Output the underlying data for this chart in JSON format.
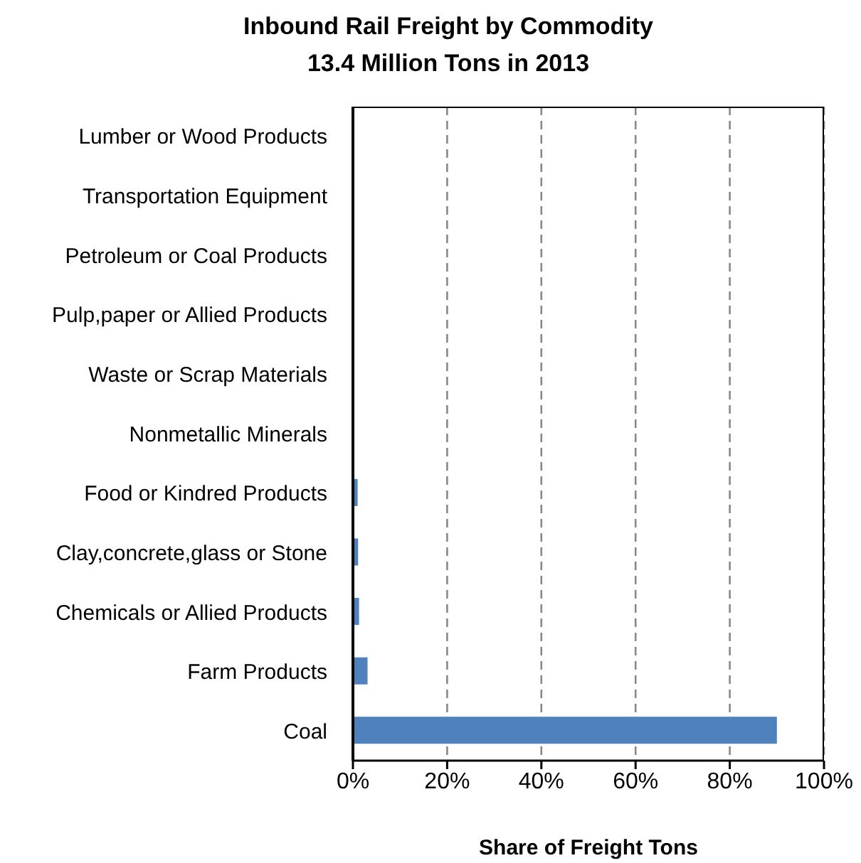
{
  "chart_data": {
    "type": "bar",
    "orientation": "horizontal",
    "title": "Inbound Rail Freight by Commodity",
    "subtitle": "13.4 Million Tons in 2013",
    "xlabel": "Share of Freight Tons",
    "categories": [
      "Lumber or Wood Products",
      "Transportation Equipment",
      "Petroleum or Coal Products",
      "Pulp,paper or Allied Products",
      "Waste or Scrap Materials",
      "Nonmetallic Minerals",
      "Food or Kindred Products",
      "Clay,concrete,glass or Stone",
      "Chemicals or Allied Products",
      "Farm Products",
      "Coal"
    ],
    "values": [
      0,
      0,
      0,
      0,
      0,
      0,
      1.0,
      1.1,
      1.3,
      3.1,
      90
    ],
    "color": "#4f81bd",
    "xlim": [
      0,
      100
    ],
    "xticks": [
      {
        "value": 0,
        "label": "0%"
      },
      {
        "value": 20,
        "label": "20%"
      },
      {
        "value": 40,
        "label": "40%"
      },
      {
        "value": 60,
        "label": "60%"
      },
      {
        "value": 80,
        "label": "80%"
      },
      {
        "value": 100,
        "label": "100%"
      }
    ],
    "grid": "x"
  }
}
